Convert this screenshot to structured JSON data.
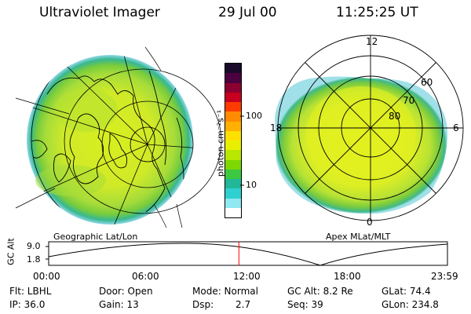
{
  "header": {
    "title": "Ultraviolet Imager",
    "date": "29 Jul 00",
    "time": "11:25:25 UT"
  },
  "left_map": {
    "caption": "Geographic Lat/Lon"
  },
  "right_map": {
    "caption": "Apex MLat/MLT",
    "mlt_labels": {
      "top": "12",
      "left": "18",
      "right": "6",
      "bottom": "0"
    },
    "mlat_labels": [
      "60",
      "70",
      "80"
    ]
  },
  "colorbar": {
    "unit_label": "photon cm⁻²s⁻¹",
    "tick_labels": [
      "100",
      "10"
    ],
    "colors": [
      "#1a0a2a",
      "#4b0040",
      "#8b0030",
      "#c80020",
      "#ff3c00",
      "#ff8c00",
      "#ffb000",
      "#ffe000",
      "#e8f000",
      "#b8e800",
      "#7cd800",
      "#3cc840",
      "#20b898",
      "#30d0d0",
      "#90e8f0",
      "#ffffff"
    ]
  },
  "timeline": {
    "y_label": "GC Alt",
    "y_ticks": [
      "9.0",
      "1.8"
    ],
    "x_ticks": [
      "00:00",
      "06:00",
      "12:00",
      "18:00",
      "23:59"
    ],
    "current_time_fraction": 0.477,
    "marker_color": "#ff0000"
  },
  "footer": {
    "filter": "Flt: LBHL",
    "door": "Door: Open",
    "mode": "Mode: Normal",
    "gc_alt": "GC Alt: 8.2 Re",
    "glat": "GLat: 74.4",
    "ip": "IP: 36.0",
    "gain": "Gain: 13",
    "dsp_label": "Dsp:",
    "dsp_value": "2.7",
    "seq": "Seq: 39",
    "glon": "GLon: 234.8"
  }
}
